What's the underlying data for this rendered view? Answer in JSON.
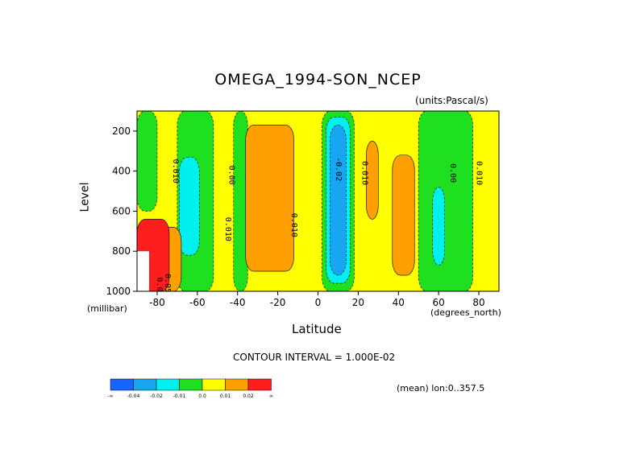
{
  "chart_data": {
    "type": "heatmap",
    "title": "OMEGA_1994-SON_NCEP",
    "units": "(units:Pascal/s)",
    "xlabel": "Latitude",
    "ylabel": "Level",
    "x_units": "(degrees_north)",
    "y_units": "(millibar)",
    "xlim": [
      -90,
      90
    ],
    "ylim": [
      1000,
      100
    ],
    "x_ticks": [
      -80,
      -60,
      -40,
      -20,
      0,
      20,
      40,
      60,
      80
    ],
    "y_ticks": [
      200,
      400,
      600,
      800,
      1000
    ],
    "contour_interval": "CONTOUR INTERVAL = 1.000E-02",
    "mean_label": "(mean) lon:0..357.5",
    "colorbar": {
      "labels": [
        "-∞",
        "-0.04",
        "-0.02",
        "-0.01",
        "0.0",
        "0.01",
        "0.02",
        "∞"
      ],
      "colors": [
        "#1466ff",
        "#18a6f2",
        "#00f0f0",
        "#1ee01e",
        "#ffff00",
        "#ffa000",
        "#ff1e1e"
      ]
    },
    "contour_labels": [
      "0.010",
      "0.00",
      "0.010",
      "0.010",
      "-0.02",
      "0.010",
      "0.00",
      "0.010",
      "0.010",
      "0.05"
    ],
    "regions": [
      {
        "level": "0.0 to 0.01",
        "from_lat": -90,
        "to_lat": 90,
        "from_p": 100,
        "to_p": 1000
      },
      {
        "level": "-0.01 to 0.0",
        "from_lat": -90,
        "to_lat": -80,
        "from_p": 100,
        "to_p": 600
      },
      {
        "level": "-0.01 to 0.0",
        "from_lat": -70,
        "to_lat": -52,
        "from_p": 100,
        "to_p": 1000
      },
      {
        "level": "-0.02 to -0.01",
        "from_lat": -69,
        "to_lat": -59,
        "from_p": 330,
        "to_p": 820
      },
      {
        "level": "-0.01 to 0.0",
        "from_lat": -42,
        "to_lat": -35,
        "from_p": 100,
        "to_p": 1000
      },
      {
        "level": "0.01 to 0.02",
        "from_lat": -36,
        "to_lat": -12,
        "from_p": 170,
        "to_p": 900
      },
      {
        "level": "-0.01 to 0.0",
        "from_lat": 2,
        "to_lat": 18,
        "from_p": 100,
        "to_p": 1000
      },
      {
        "level": "-0.02 to -0.01",
        "from_lat": 4,
        "to_lat": 16,
        "from_p": 130,
        "to_p": 960
      },
      {
        "level": "-0.04 to -0.02",
        "from_lat": 6,
        "to_lat": 14,
        "from_p": 170,
        "to_p": 920
      },
      {
        "level": "0.01 to 0.02",
        "from_lat": 24,
        "to_lat": 30,
        "from_p": 250,
        "to_p": 640
      },
      {
        "level": "0.01 to 0.02",
        "from_lat": 37,
        "to_lat": 48,
        "from_p": 320,
        "to_p": 920
      },
      {
        "level": "-0.01 to 0.0",
        "from_lat": 50,
        "to_lat": 77,
        "from_p": 100,
        "to_p": 1000
      },
      {
        "level": "-0.02 to -0.01",
        "from_lat": 57,
        "to_lat": 63,
        "from_p": 480,
        "to_p": 870
      },
      {
        "level": "0.01 to 0.02",
        "from_lat": -78,
        "to_lat": -68,
        "from_p": 680,
        "to_p": 1000
      },
      {
        "level": "0.02 to inf",
        "from_lat": -90,
        "to_lat": -74,
        "from_p": 640,
        "to_p": 1000
      }
    ],
    "grid": false
  }
}
